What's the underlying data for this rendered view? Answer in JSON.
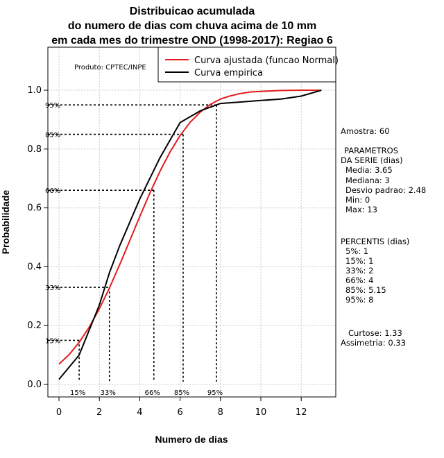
{
  "chart_data": {
    "type": "line",
    "title": [
      "Distribuicao acumulada",
      "do numero de dias com chuva acima de 10 mm",
      "em cada mes do trimestre OND (1998-2017): Regiao 6"
    ],
    "xlabel": "Numero de dias",
    "ylabel": "Probabilidade",
    "xlim": [
      -0.5,
      13.5
    ],
    "ylim": [
      -0.05,
      1.15
    ],
    "xticks": [
      0,
      2,
      4,
      6,
      8,
      10,
      12
    ],
    "yticks": [
      0.0,
      0.2,
      0.4,
      0.6,
      0.8,
      1.0
    ],
    "xtick_labels": [
      "0",
      "2",
      "4",
      "6",
      "8",
      "10",
      "12"
    ],
    "ytick_labels": [
      "0.0",
      "0.2",
      "0.4",
      "0.6",
      "0.8",
      "1.0"
    ],
    "grid": true,
    "product_label": "Produto: CPTEC/INPE",
    "legend_position": "top-right",
    "series": [
      {
        "name": "Curva ajustada (funcao Normal)",
        "color": "#e31a1c",
        "x": [
          0,
          0.5,
          1,
          1.5,
          2,
          2.5,
          3,
          3.5,
          4,
          4.5,
          5,
          5.5,
          6,
          6.5,
          7,
          7.5,
          8,
          8.5,
          9,
          9.5,
          10,
          11,
          12,
          13
        ],
        "y": [
          0.069,
          0.101,
          0.143,
          0.195,
          0.257,
          0.328,
          0.406,
          0.488,
          0.57,
          0.65,
          0.724,
          0.79,
          0.846,
          0.891,
          0.926,
          0.952,
          0.97,
          0.981,
          0.989,
          0.994,
          0.996,
          0.999,
          1.0,
          1.0
        ]
      },
      {
        "name": "Curva empirica",
        "color": "#000000",
        "x": [
          0,
          1,
          2,
          2.5,
          3,
          4,
          5,
          6,
          7,
          8,
          9,
          10,
          11,
          12,
          13
        ],
        "y": [
          0.017,
          0.1,
          0.27,
          0.38,
          0.47,
          0.63,
          0.77,
          0.89,
          0.93,
          0.955,
          0.96,
          0.965,
          0.97,
          0.98,
          1.0
        ]
      }
    ],
    "percentile_markers": [
      {
        "label": "15%",
        "prob": 0.15,
        "x": 1
      },
      {
        "label": "33%",
        "prob": 0.33,
        "x": 2.5
      },
      {
        "label": "66%",
        "prob": 0.66,
        "x": 4.7
      },
      {
        "label": "85%",
        "prob": 0.85,
        "x": 6.15
      },
      {
        "label": "95%",
        "prob": 0.95,
        "x": 7.8
      }
    ]
  },
  "side_panel": {
    "sample": "Amostra: 60",
    "params_header_1": "PARAMETROS",
    "params_header_2": "DA SERIE (dias)",
    "params": [
      "Media: 3.65",
      "Mediana: 3",
      "Desvio padrao: 2.48",
      "Min: 0",
      "Max: 13"
    ],
    "percentis_header": "PERCENTIS (dias)",
    "percentis": [
      "5%: 1",
      "15%: 1",
      "33%: 2",
      "66%: 4",
      "85%: 5.15",
      "95%: 8"
    ],
    "curtose": "Curtose: 1.33",
    "assimetria": "Assimetria: 0.33"
  }
}
